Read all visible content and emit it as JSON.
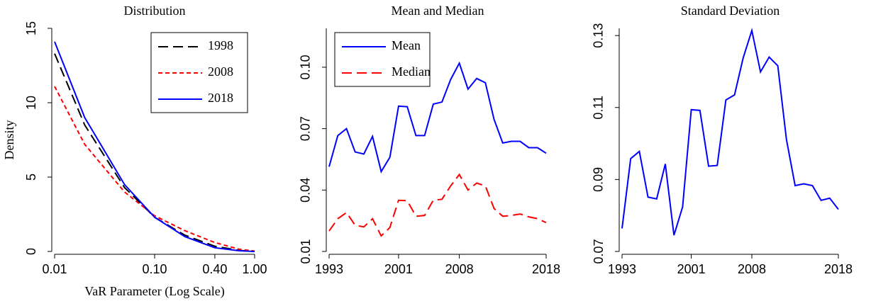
{
  "chart_data": [
    {
      "type": "line",
      "title": "Distribution",
      "xlabel": "VaR Parameter (Log Scale)",
      "ylabel": "Density",
      "xscale": "log",
      "x": [
        0.01,
        0.02,
        0.05,
        0.1,
        0.2,
        0.4,
        0.7,
        1.0
      ],
      "xlim": [
        0.01,
        1.0
      ],
      "xticks": [
        0.01,
        {
          "value": 0.1,
          "label": "0.10"
        },
        {
          "value": 0.4,
          "label": "0.40"
        },
        {
          "value": 1.0,
          "label": "1.00"
        }
      ],
      "ylim": [
        0,
        15
      ],
      "yticks": [
        0,
        5,
        10,
        15
      ],
      "legend": "top-right",
      "series": [
        {
          "name": "1998",
          "color": "#000000",
          "linestyle": "long-dash",
          "values": [
            13.3,
            8.5,
            4.3,
            2.3,
            1.1,
            0.35,
            0.07,
            0.0
          ]
        },
        {
          "name": "2008",
          "color": "#ff0000",
          "linestyle": "short-dash",
          "values": [
            11.1,
            7.2,
            4.0,
            2.4,
            1.4,
            0.6,
            0.15,
            0.03
          ]
        },
        {
          "name": "2018",
          "color": "#0000ff",
          "linestyle": "solid",
          "values": [
            14.1,
            9.0,
            4.5,
            2.3,
            1.0,
            0.25,
            0.05,
            0.0
          ]
        }
      ]
    },
    {
      "type": "line",
      "title": "Mean and Median",
      "x": [
        1993,
        1994,
        1995,
        1996,
        1997,
        1998,
        1999,
        2000,
        2001,
        2002,
        2003,
        2004,
        2005,
        2006,
        2007,
        2008,
        2009,
        2010,
        2011,
        2012,
        2013,
        2014,
        2015,
        2016,
        2017,
        2018
      ],
      "xlim": [
        1993,
        2018
      ],
      "xticks": [
        1993,
        2001,
        2008,
        2018
      ],
      "ylim": [
        0.01,
        0.119
      ],
      "yticks": [
        0.01,
        0.04,
        0.07,
        {
          "value": 0.1,
          "label": "0.10"
        }
      ],
      "legend": "top-left",
      "series": [
        {
          "name": "Mean",
          "color": "#0000ff",
          "linestyle": "solid",
          "values": [
            0.0514,
            0.0666,
            0.07,
            0.0586,
            0.0576,
            0.0662,
            0.049,
            0.056,
            0.081,
            0.0807,
            0.0666,
            0.0666,
            0.082,
            0.083,
            0.094,
            0.102,
            0.0893,
            0.0945,
            0.0924,
            0.0745,
            0.063,
            0.0638,
            0.0638,
            0.0607,
            0.0607,
            0.058
          ]
        },
        {
          "name": "Median",
          "color": "#ff0000",
          "linestyle": "long-dash",
          "values": [
            0.02,
            0.026,
            0.029,
            0.0228,
            0.022,
            0.026,
            0.0176,
            0.0217,
            0.035,
            0.0348,
            0.0272,
            0.0276,
            0.035,
            0.0355,
            0.042,
            0.0476,
            0.04,
            0.0434,
            0.042,
            0.031,
            0.0272,
            0.0276,
            0.0283,
            0.0269,
            0.026,
            0.0241
          ]
        }
      ]
    },
    {
      "type": "line",
      "title": "Standard Deviation",
      "x": [
        1993,
        1994,
        1995,
        1996,
        1997,
        1998,
        1999,
        2000,
        2001,
        2002,
        2003,
        2004,
        2005,
        2006,
        2007,
        2008,
        2009,
        2010,
        2011,
        2012,
        2013,
        2014,
        2015,
        2016,
        2017,
        2018
      ],
      "xlim": [
        1993,
        2018
      ],
      "xticks": [
        1993,
        2001,
        2008,
        2018
      ],
      "ylim": [
        0.07,
        0.132
      ],
      "yticks": [
        0.07,
        0.09,
        0.11,
        0.13
      ],
      "series": [
        {
          "color": "#0000ff",
          "linestyle": "solid",
          "values": [
            0.0764,
            0.0958,
            0.0978,
            0.0851,
            0.0846,
            0.0943,
            0.0745,
            0.0824,
            0.1094,
            0.1092,
            0.0937,
            0.0939,
            0.1121,
            0.1135,
            0.1238,
            0.1314,
            0.1199,
            0.124,
            0.1216,
            0.1011,
            0.0883,
            0.0888,
            0.0883,
            0.0842,
            0.0848,
            0.0817
          ]
        }
      ]
    }
  ]
}
